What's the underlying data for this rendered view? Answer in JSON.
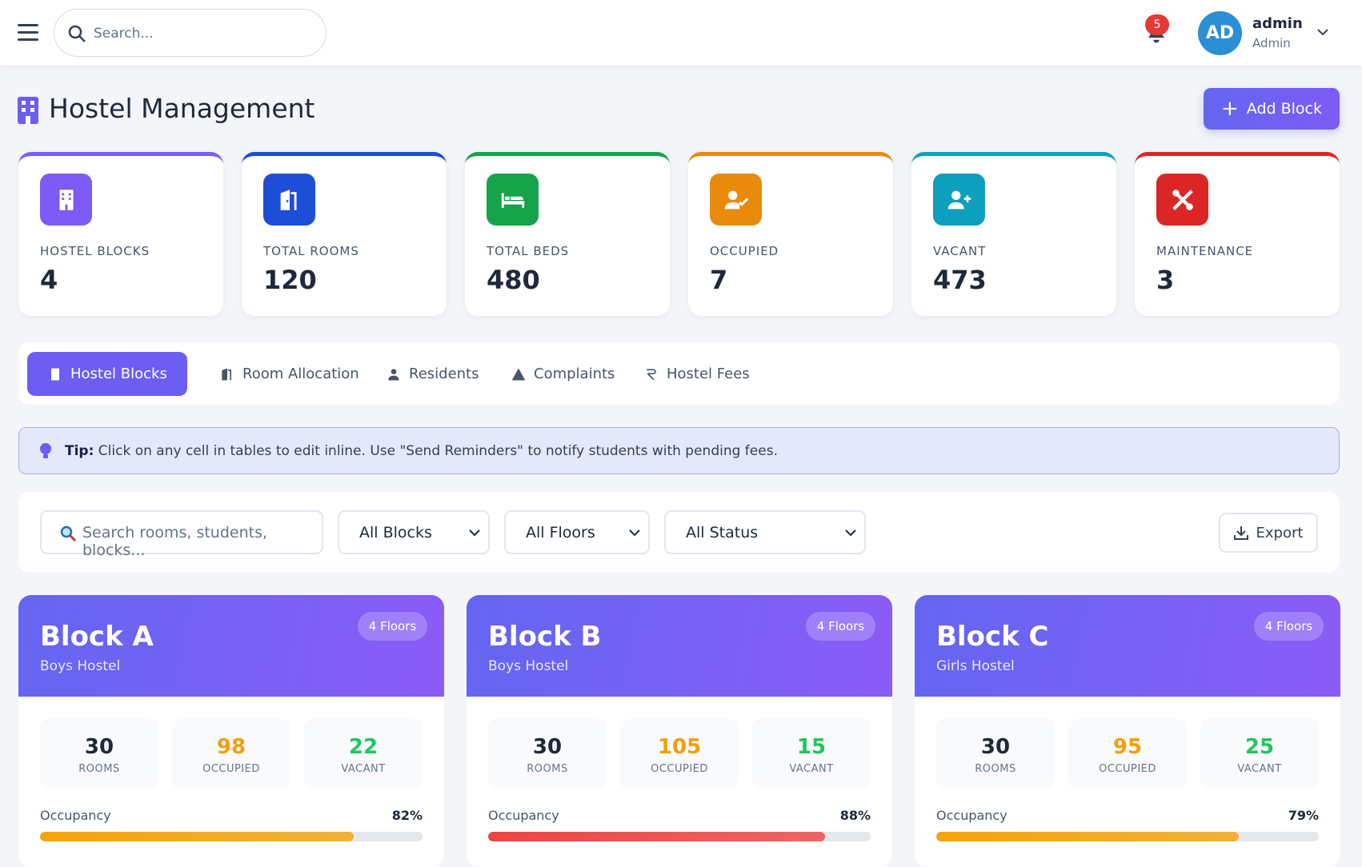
{
  "header": {
    "search_placeholder": "Search...",
    "notification_count": 5,
    "avatar_initials": "AD",
    "user_name": "admin",
    "user_role": "Admin"
  },
  "page": {
    "title": "Hostel Management",
    "add_button": "Add Block"
  },
  "stats": [
    {
      "label": "HOSTEL BLOCKS",
      "value": 4,
      "color": "#7c5cf5"
    },
    {
      "label": "TOTAL ROOMS",
      "value": 120,
      "color": "#1d4ed8"
    },
    {
      "label": "TOTAL BEDS",
      "value": 480,
      "color": "#16a34a"
    },
    {
      "label": "OCCUPIED",
      "value": 7,
      "color": "#ea8a0c"
    },
    {
      "label": "VACANT",
      "value": 473,
      "color": "#0e9fbd"
    },
    {
      "label": "MAINTENANCE",
      "value": 3,
      "color": "#dc2626"
    }
  ],
  "tabs": [
    {
      "label": "Hostel Blocks",
      "active": true
    },
    {
      "label": "Room Allocation",
      "active": false
    },
    {
      "label": "Residents",
      "active": false
    },
    {
      "label": "Complaints",
      "active": false
    },
    {
      "label": "Hostel Fees",
      "active": false
    }
  ],
  "tip": {
    "label": "Tip:",
    "text": "Click on any cell in tables to edit inline. Use \"Send Reminders\" to notify students with pending fees."
  },
  "filters": {
    "search_placeholder": "Search rooms, students, blocks...",
    "selects": [
      "All Blocks",
      "All Floors",
      "All Status"
    ],
    "export": "Export"
  },
  "block_labels": {
    "rooms": "ROOMS",
    "occupied": "OCCUPIED",
    "vacant": "VACANT",
    "occupancy": "Occupancy"
  },
  "blocks": [
    {
      "name": "Block A",
      "type": "Boys Hostel",
      "floors": "4 Floors",
      "rooms": 30,
      "occupied": 98,
      "vacant": 22,
      "occupancy": 82,
      "occupancy_label": "82%",
      "bar_color": "#f5a30b"
    },
    {
      "name": "Block B",
      "type": "Boys Hostel",
      "floors": "4 Floors",
      "rooms": 30,
      "occupied": 105,
      "vacant": 15,
      "occupancy": 88,
      "occupancy_label": "88%",
      "bar_color": "#ef4444"
    },
    {
      "name": "Block C",
      "type": "Girls Hostel",
      "floors": "4 Floors",
      "rooms": 30,
      "occupied": 95,
      "vacant": 25,
      "occupancy": 79,
      "occupancy_label": "79%",
      "bar_color": "#f5a30b"
    }
  ]
}
